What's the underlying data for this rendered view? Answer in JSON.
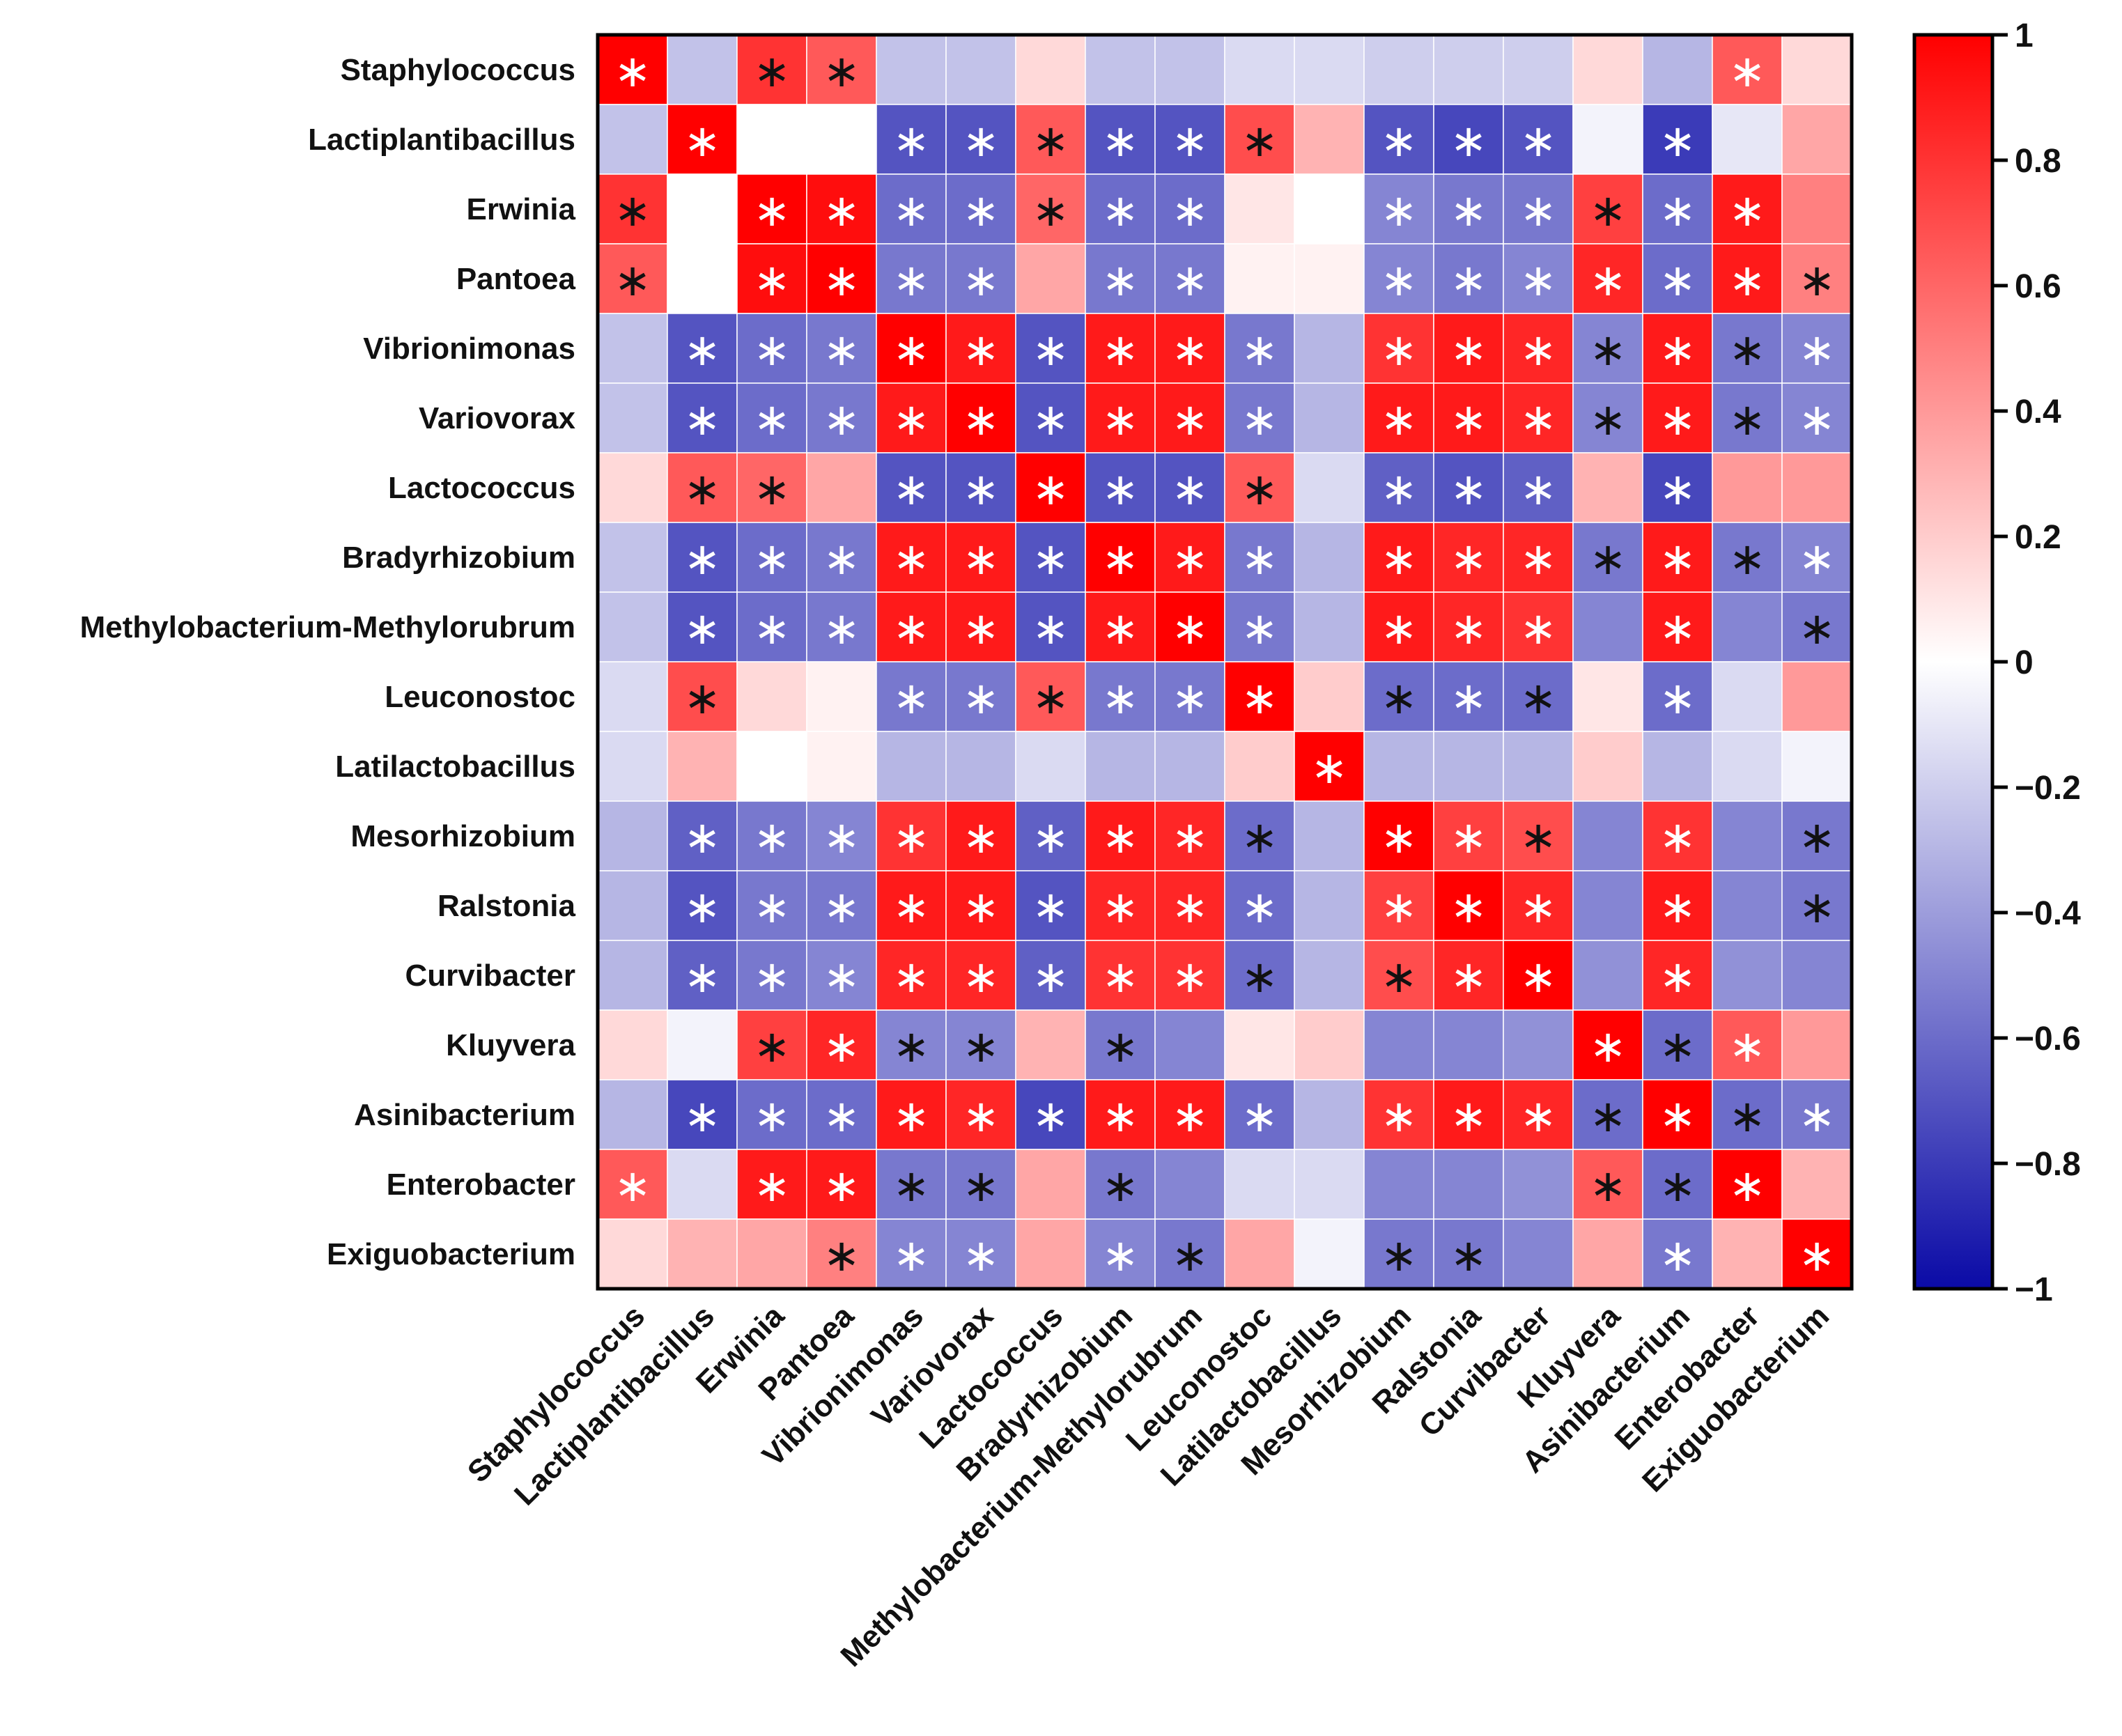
{
  "chart_data": {
    "type": "heatmap",
    "title": "",
    "xlabel": "",
    "ylabel": "",
    "value_range": [
      -1,
      1
    ],
    "colors": {
      "negative": "#0a0aa6",
      "zero": "#ffffff",
      "positive": "#ff0000",
      "grid_line": "#ffffff",
      "frame": "#000000"
    },
    "star_symbol": "∗",
    "labels": [
      "Staphylococcus",
      "Lactiplantibacillus",
      "Erwinia",
      "Pantoea",
      "Vibrionimonas",
      "Variovorax",
      "Lactococcus",
      "Bradyrhizobium",
      "Methylobacterium-Methylorubrum",
      "Leuconostoc",
      "Latilactobacillus",
      "Mesorhizobium",
      "Ralstonia",
      "Curvibacter",
      "Kluyvera",
      "Asinibacterium",
      "Enterobacter",
      "Exiguobacterium"
    ],
    "values": [
      [
        1.0,
        -0.25,
        0.8,
        0.65,
        -0.25,
        -0.25,
        0.15,
        -0.25,
        -0.25,
        -0.15,
        -0.15,
        -0.2,
        -0.2,
        -0.2,
        0.15,
        -0.3,
        0.65,
        0.15
      ],
      [
        -0.25,
        1.0,
        0.0,
        0.0,
        -0.7,
        -0.7,
        0.65,
        -0.7,
        -0.7,
        0.7,
        0.3,
        -0.7,
        -0.75,
        -0.7,
        -0.05,
        -0.8,
        -0.1,
        0.35
      ],
      [
        0.8,
        0.0,
        1.0,
        0.95,
        -0.6,
        -0.6,
        0.6,
        -0.6,
        -0.6,
        0.1,
        0.0,
        -0.5,
        -0.55,
        -0.55,
        0.75,
        -0.6,
        0.9,
        0.5
      ],
      [
        0.65,
        0.0,
        0.95,
        1.0,
        -0.55,
        -0.55,
        0.35,
        -0.55,
        -0.55,
        0.05,
        0.05,
        -0.5,
        -0.55,
        -0.5,
        0.85,
        -0.6,
        0.9,
        0.5
      ],
      [
        -0.25,
        -0.7,
        -0.6,
        -0.55,
        1.0,
        0.9,
        -0.7,
        0.9,
        0.9,
        -0.55,
        -0.3,
        0.8,
        0.9,
        0.85,
        -0.5,
        0.9,
        -0.55,
        -0.5
      ],
      [
        -0.25,
        -0.7,
        -0.6,
        -0.55,
        0.9,
        1.0,
        -0.7,
        0.9,
        0.9,
        -0.55,
        -0.3,
        0.9,
        0.9,
        0.85,
        -0.5,
        0.9,
        -0.55,
        -0.5
      ],
      [
        0.15,
        0.65,
        0.6,
        0.35,
        -0.7,
        -0.7,
        1.0,
        -0.7,
        -0.7,
        0.65,
        -0.15,
        -0.65,
        -0.7,
        -0.65,
        0.3,
        -0.75,
        0.4,
        0.4
      ],
      [
        -0.25,
        -0.7,
        -0.6,
        -0.55,
        0.9,
        0.9,
        -0.7,
        1.0,
        0.9,
        -0.55,
        -0.3,
        0.9,
        0.85,
        0.85,
        -0.55,
        0.9,
        -0.55,
        -0.5
      ],
      [
        -0.25,
        -0.7,
        -0.6,
        -0.55,
        0.9,
        0.9,
        -0.7,
        0.9,
        1.0,
        -0.55,
        -0.3,
        0.9,
        0.85,
        0.8,
        -0.5,
        0.9,
        -0.5,
        -0.55
      ],
      [
        -0.15,
        0.7,
        0.15,
        0.05,
        -0.55,
        -0.55,
        0.65,
        -0.55,
        -0.55,
        1.0,
        0.2,
        -0.6,
        -0.6,
        -0.6,
        0.1,
        -0.6,
        -0.15,
        0.4
      ],
      [
        -0.15,
        0.3,
        0.0,
        0.05,
        -0.3,
        -0.3,
        -0.15,
        -0.3,
        -0.3,
        0.2,
        1.0,
        -0.3,
        -0.3,
        -0.3,
        0.2,
        -0.3,
        -0.15,
        -0.05
      ],
      [
        -0.3,
        -0.65,
        -0.55,
        -0.5,
        0.8,
        0.9,
        -0.65,
        0.9,
        0.85,
        -0.6,
        -0.3,
        1.0,
        0.75,
        0.7,
        -0.5,
        0.8,
        -0.5,
        -0.55
      ],
      [
        -0.3,
        -0.7,
        -0.55,
        -0.55,
        0.9,
        0.9,
        -0.7,
        0.85,
        0.85,
        -0.6,
        -0.3,
        0.75,
        1.0,
        0.85,
        -0.5,
        0.9,
        -0.5,
        -0.55
      ],
      [
        -0.3,
        -0.65,
        -0.55,
        -0.5,
        0.85,
        0.85,
        -0.65,
        0.8,
        0.8,
        -0.6,
        -0.3,
        0.7,
        0.85,
        1.0,
        -0.45,
        0.85,
        -0.45,
        -0.5
      ],
      [
        0.15,
        -0.05,
        0.75,
        0.85,
        -0.5,
        -0.5,
        0.3,
        -0.55,
        -0.5,
        0.1,
        0.2,
        -0.5,
        -0.5,
        -0.45,
        1.0,
        -0.6,
        0.65,
        0.4
      ],
      [
        -0.3,
        -0.75,
        -0.6,
        -0.6,
        0.9,
        0.85,
        -0.75,
        0.9,
        0.9,
        -0.6,
        -0.3,
        0.8,
        0.9,
        0.85,
        -0.6,
        1.0,
        -0.6,
        -0.55
      ],
      [
        0.65,
        -0.15,
        0.9,
        0.9,
        -0.55,
        -0.55,
        0.35,
        -0.55,
        -0.5,
        -0.15,
        -0.15,
        -0.5,
        -0.5,
        -0.45,
        0.65,
        -0.6,
        1.0,
        0.3
      ],
      [
        0.15,
        0.3,
        0.35,
        0.5,
        -0.5,
        -0.5,
        0.35,
        -0.5,
        -0.55,
        0.35,
        -0.05,
        -0.55,
        -0.55,
        -0.5,
        0.35,
        -0.55,
        0.3,
        1.0
      ]
    ],
    "significance": [
      [
        1,
        0,
        1,
        1,
        0,
        0,
        0,
        0,
        0,
        0,
        0,
        0,
        0,
        0,
        0,
        0,
        1,
        0
      ],
      [
        0,
        1,
        0,
        0,
        1,
        1,
        1,
        1,
        1,
        1,
        0,
        1,
        1,
        1,
        0,
        1,
        0,
        0
      ],
      [
        1,
        0,
        1,
        1,
        1,
        1,
        1,
        1,
        1,
        0,
        0,
        1,
        1,
        1,
        1,
        1,
        1,
        0
      ],
      [
        1,
        0,
        1,
        1,
        1,
        1,
        0,
        1,
        1,
        0,
        0,
        1,
        1,
        1,
        1,
        1,
        1,
        1
      ],
      [
        0,
        1,
        1,
        1,
        1,
        1,
        1,
        1,
        1,
        1,
        0,
        1,
        1,
        1,
        1,
        1,
        1,
        1
      ],
      [
        0,
        1,
        1,
        1,
        1,
        1,
        1,
        1,
        1,
        1,
        0,
        1,
        1,
        1,
        1,
        1,
        1,
        1
      ],
      [
        0,
        1,
        1,
        0,
        1,
        1,
        1,
        1,
        1,
        1,
        0,
        1,
        1,
        1,
        0,
        1,
        0,
        0
      ],
      [
        0,
        1,
        1,
        1,
        1,
        1,
        1,
        1,
        1,
        1,
        0,
        1,
        1,
        1,
        1,
        1,
        1,
        1
      ],
      [
        0,
        1,
        1,
        1,
        1,
        1,
        1,
        1,
        1,
        1,
        0,
        1,
        1,
        1,
        0,
        1,
        0,
        1
      ],
      [
        0,
        1,
        0,
        0,
        1,
        1,
        1,
        1,
        1,
        1,
        0,
        1,
        1,
        1,
        0,
        1,
        0,
        0
      ],
      [
        0,
        0,
        0,
        0,
        0,
        0,
        0,
        0,
        0,
        0,
        1,
        0,
        0,
        0,
        0,
        0,
        0,
        0
      ],
      [
        0,
        1,
        1,
        1,
        1,
        1,
        1,
        1,
        1,
        1,
        0,
        1,
        1,
        1,
        0,
        1,
        0,
        1
      ],
      [
        0,
        1,
        1,
        1,
        1,
        1,
        1,
        1,
        1,
        1,
        0,
        1,
        1,
        1,
        0,
        1,
        0,
        1
      ],
      [
        0,
        1,
        1,
        1,
        1,
        1,
        1,
        1,
        1,
        1,
        0,
        1,
        1,
        1,
        0,
        1,
        0,
        0
      ],
      [
        0,
        0,
        1,
        1,
        1,
        1,
        0,
        1,
        0,
        0,
        0,
        0,
        0,
        0,
        1,
        1,
        1,
        0
      ],
      [
        0,
        1,
        1,
        1,
        1,
        1,
        1,
        1,
        1,
        1,
        0,
        1,
        1,
        1,
        1,
        1,
        1,
        1
      ],
      [
        1,
        0,
        1,
        1,
        1,
        1,
        0,
        1,
        0,
        0,
        0,
        0,
        0,
        0,
        1,
        1,
        1,
        0
      ],
      [
        0,
        0,
        0,
        1,
        1,
        1,
        0,
        1,
        1,
        0,
        0,
        1,
        1,
        0,
        0,
        1,
        0,
        1
      ]
    ],
    "star_dark": [
      [
        0,
        0,
        1,
        1,
        0,
        0,
        0,
        0,
        0,
        0,
        0,
        0,
        0,
        0,
        0,
        0,
        0,
        0
      ],
      [
        0,
        0,
        0,
        0,
        0,
        0,
        1,
        0,
        0,
        1,
        0,
        0,
        0,
        0,
        0,
        0,
        0,
        0
      ],
      [
        1,
        0,
        0,
        0,
        0,
        0,
        1,
        0,
        0,
        0,
        0,
        0,
        0,
        0,
        1,
        0,
        0,
        0
      ],
      [
        1,
        0,
        0,
        0,
        0,
        0,
        0,
        0,
        0,
        0,
        0,
        0,
        0,
        0,
        0,
        0,
        0,
        1
      ],
      [
        0,
        0,
        0,
        0,
        0,
        0,
        0,
        0,
        0,
        0,
        0,
        0,
        0,
        0,
        1,
        0,
        1,
        0
      ],
      [
        0,
        0,
        0,
        0,
        0,
        0,
        0,
        0,
        0,
        0,
        0,
        0,
        0,
        0,
        1,
        0,
        1,
        0
      ],
      [
        0,
        1,
        1,
        0,
        0,
        0,
        0,
        0,
        0,
        1,
        0,
        0,
        0,
        0,
        0,
        0,
        0,
        0
      ],
      [
        0,
        0,
        0,
        0,
        0,
        0,
        0,
        0,
        0,
        0,
        0,
        0,
        0,
        0,
        1,
        0,
        1,
        0
      ],
      [
        0,
        0,
        0,
        0,
        0,
        0,
        0,
        0,
        0,
        0,
        0,
        0,
        0,
        0,
        0,
        0,
        0,
        1
      ],
      [
        0,
        1,
        0,
        0,
        0,
        0,
        1,
        0,
        0,
        0,
        0,
        1,
        0,
        1,
        0,
        0,
        0,
        0
      ],
      [
        0,
        0,
        0,
        0,
        0,
        0,
        0,
        0,
        0,
        0,
        0,
        0,
        0,
        0,
        0,
        0,
        0,
        0
      ],
      [
        0,
        0,
        0,
        0,
        0,
        0,
        0,
        0,
        0,
        1,
        0,
        0,
        0,
        1,
        0,
        0,
        0,
        1
      ],
      [
        0,
        0,
        0,
        0,
        0,
        0,
        0,
        0,
        0,
        0,
        0,
        0,
        0,
        0,
        0,
        0,
        0,
        1
      ],
      [
        0,
        0,
        0,
        0,
        0,
        0,
        0,
        0,
        0,
        1,
        0,
        1,
        0,
        0,
        0,
        0,
        0,
        0
      ],
      [
        0,
        0,
        1,
        0,
        1,
        1,
        0,
        1,
        0,
        0,
        0,
        0,
        0,
        0,
        0,
        1,
        0,
        0
      ],
      [
        0,
        0,
        0,
        0,
        0,
        0,
        0,
        0,
        0,
        0,
        0,
        0,
        0,
        0,
        1,
        0,
        1,
        0
      ],
      [
        0,
        0,
        0,
        0,
        1,
        1,
        0,
        1,
        0,
        0,
        0,
        0,
        0,
        0,
        1,
        1,
        0,
        0
      ],
      [
        0,
        0,
        0,
        1,
        0,
        0,
        0,
        0,
        1,
        0,
        0,
        1,
        1,
        0,
        0,
        0,
        0,
        0
      ]
    ],
    "colorbar": {
      "ticks": [
        1,
        0.8,
        0.6,
        0.4,
        0.2,
        0,
        -0.2,
        -0.4,
        -0.6,
        -0.8,
        -1
      ],
      "tick_labels": [
        "1",
        "0.8",
        "0.6",
        "0.4",
        "0.2",
        "0",
        "−0.2",
        "−0.4",
        "−0.6",
        "−0.8",
        "−1"
      ]
    }
  }
}
